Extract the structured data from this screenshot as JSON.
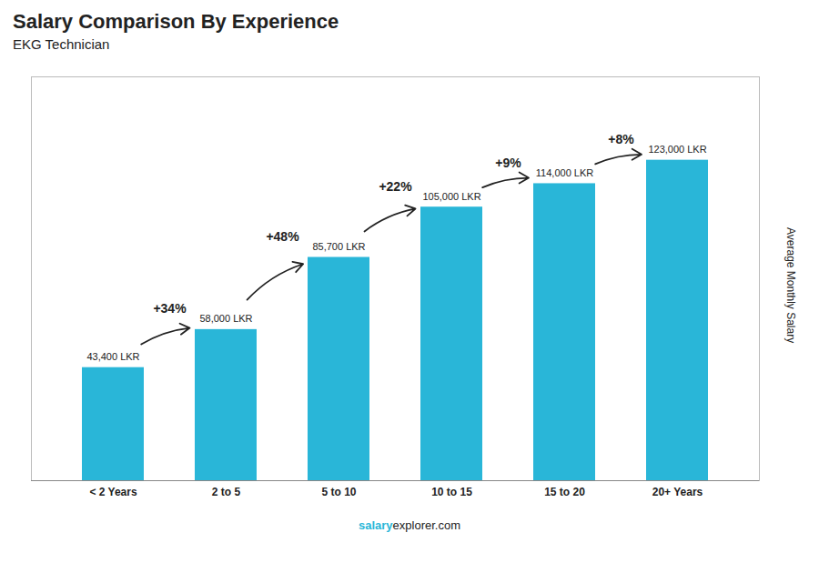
{
  "chart_data": {
    "type": "bar",
    "title": "Salary Comparison By Experience",
    "subtitle": "EKG Technician",
    "categories": [
      "< 2 Years",
      "2 to 5",
      "5 to 10",
      "10 to 15",
      "15 to 20",
      "20+ Years"
    ],
    "values": [
      43400,
      58000,
      85700,
      105000,
      114000,
      123000
    ],
    "value_labels": [
      "43,400 LKR",
      "58,000 LKR",
      "85,700 LKR",
      "105,000 LKR",
      "114,000 LKR",
      "123,000 LKR"
    ],
    "data_labels": true,
    "color": "#29b6d8",
    "ylabel": "Average Monthly Salary",
    "ylim": [
      0,
      155000
    ],
    "tick_labels": "x",
    "grid": false,
    "annotations": [
      {
        "text": "+34%",
        "from": "< 2 Years",
        "to": "2 to 5"
      },
      {
        "text": "+48%",
        "from": "2 to 5",
        "to": "5 to 10"
      },
      {
        "text": "+22%",
        "from": "5 to 10",
        "to": "10 to 15"
      },
      {
        "text": "+9%",
        "from": "10 to 15",
        "to": "15 to 20"
      },
      {
        "text": "+8%",
        "from": "15 to 20",
        "to": "20+ Years"
      }
    ],
    "footer": [
      "salary",
      "explorer.com"
    ]
  }
}
